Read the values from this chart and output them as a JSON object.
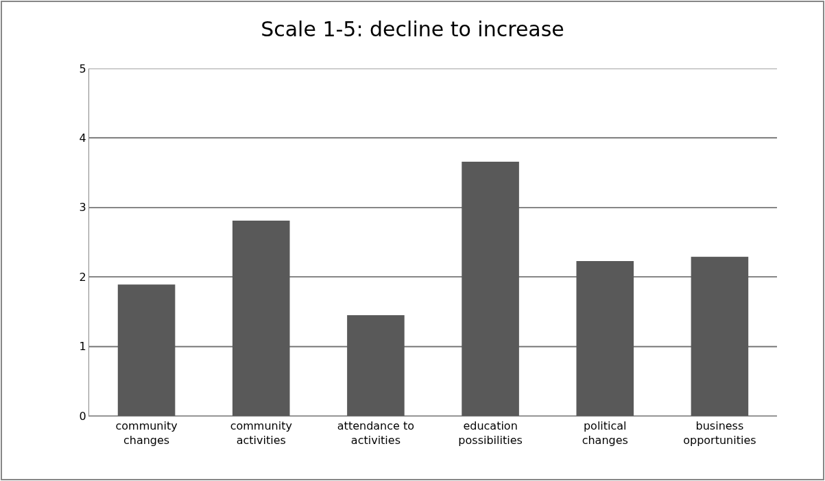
{
  "chart_data": {
    "type": "bar",
    "title": "Scale 1-5: decline to increase",
    "categories": [
      "community\nchanges",
      "community\nactivities",
      "attendance to\nactivities",
      "education\npossibilities",
      "political\nchanges",
      "business\nopportunities"
    ],
    "values": [
      1.89,
      2.81,
      1.45,
      3.66,
      2.23,
      2.29
    ],
    "color": "#595959",
    "ylim": [
      0,
      5
    ],
    "yticks": [
      0,
      1,
      2,
      3,
      4,
      5
    ],
    "grid": "y"
  }
}
